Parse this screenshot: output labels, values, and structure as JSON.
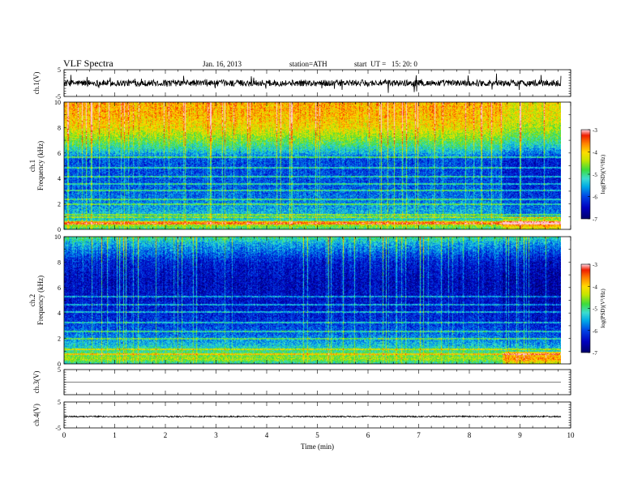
{
  "header": {
    "title": "VLF Spectra",
    "date": "Jan. 16, 2013",
    "station": "station=ATH",
    "start_time": "start  UT =   15: 20: 0"
  },
  "chart_data": {
    "type": "heatmap",
    "xlabel": "Time  (min)",
    "xlim": [
      0,
      10
    ],
    "x_ticks": [
      "0",
      "1",
      "2",
      "3",
      "4",
      "5",
      "6",
      "7",
      "8",
      "9",
      "10"
    ],
    "data_end_min": 9.8,
    "change_time_min": 8.65,
    "panels": [
      {
        "id": "ch1-waveform",
        "kind": "waveform",
        "ylabel": "ch.1(V)",
        "ylim": [
          -5,
          5
        ],
        "y_ticks": [
          "5",
          "-5"
        ],
        "level_V": 0,
        "noise_amplitude_V": 1.2,
        "spike_amplitude_V": 3.5
      },
      {
        "id": "ch1-spectrogram",
        "kind": "spectrogram",
        "ylabel": "ch.1\nFrequency  (kHz)",
        "ylim": [
          0,
          10
        ],
        "y_ticks": [
          "0",
          "2",
          "4",
          "6",
          "8",
          "10"
        ],
        "colorbar": {
          "label": "log(PSD)(V²/Hz)",
          "range": [
            -7,
            -3
          ],
          "ticks": [
            "-3",
            "-4",
            "-5",
            "-6",
            "-7"
          ]
        },
        "profile_khz": [
          {
            "f": 0.0,
            "v": -5.1
          },
          {
            "f": 0.3,
            "v": -4.6
          },
          {
            "f": 0.5,
            "v": -4.1
          },
          {
            "f": 0.8,
            "v": -5.3
          },
          {
            "f": 1.5,
            "v": -5.5
          },
          {
            "f": 2.5,
            "v": -5.8
          },
          {
            "f": 4.0,
            "v": -6.0
          },
          {
            "f": 5.5,
            "v": -6.0
          },
          {
            "f": 6.2,
            "v": -5.3
          },
          {
            "f": 7.0,
            "v": -4.7
          },
          {
            "f": 8.0,
            "v": -4.1
          },
          {
            "f": 9.0,
            "v": -3.85
          },
          {
            "f": 10.0,
            "v": -3.8
          }
        ],
        "line_khz": [
          0.5,
          0.6,
          1.0,
          1.2,
          2.0,
          2.4,
          3.1,
          3.6,
          4.2,
          4.9,
          5.7
        ],
        "after_change_offset": -0.3
      },
      {
        "id": "ch2-spectrogram",
        "kind": "spectrogram",
        "ylabel": "ch.2\nFrequency  (kHz)",
        "ylim": [
          0,
          10
        ],
        "y_ticks": [
          "0",
          "2",
          "4",
          "6",
          "8",
          "10"
        ],
        "colorbar": {
          "label": "log(PSD)(V²/Hz)",
          "range": [
            -7,
            -3
          ],
          "ticks": [
            "-3",
            "-4",
            "-5",
            "-6",
            "-7"
          ]
        },
        "profile_khz": [
          {
            "f": 0.0,
            "v": -5.3
          },
          {
            "f": 0.4,
            "v": -4.5
          },
          {
            "f": 0.8,
            "v": -4.8
          },
          {
            "f": 1.5,
            "v": -5.4
          },
          {
            "f": 2.5,
            "v": -5.9
          },
          {
            "f": 3.5,
            "v": -6.2
          },
          {
            "f": 5.0,
            "v": -6.4
          },
          {
            "f": 6.5,
            "v": -6.5
          },
          {
            "f": 8.0,
            "v": -6.3
          },
          {
            "f": 9.5,
            "v": -5.5
          },
          {
            "f": 10.0,
            "v": -5.0
          }
        ],
        "line_khz": [
          0.8,
          1.2,
          2.0,
          2.6,
          3.3,
          4.1,
          4.7,
          5.3
        ],
        "after_change_offset": -0.2
      },
      {
        "id": "ch3-waveform",
        "kind": "waveform",
        "ylabel": "ch.3(V)",
        "ylim": [
          -5,
          5
        ],
        "y_ticks": [
          "5"
        ],
        "level_V": 0,
        "noise_amplitude_V": 0.05,
        "spike_amplitude_V": 0
      },
      {
        "id": "ch4-waveform",
        "kind": "waveform",
        "ylabel": "ch.4(V)",
        "ylim": [
          -5,
          5
        ],
        "y_ticks": [
          "5",
          "-5"
        ],
        "level_V": -0.6,
        "noise_amplitude_V": 0.25,
        "spike_amplitude_V": 0
      }
    ]
  }
}
